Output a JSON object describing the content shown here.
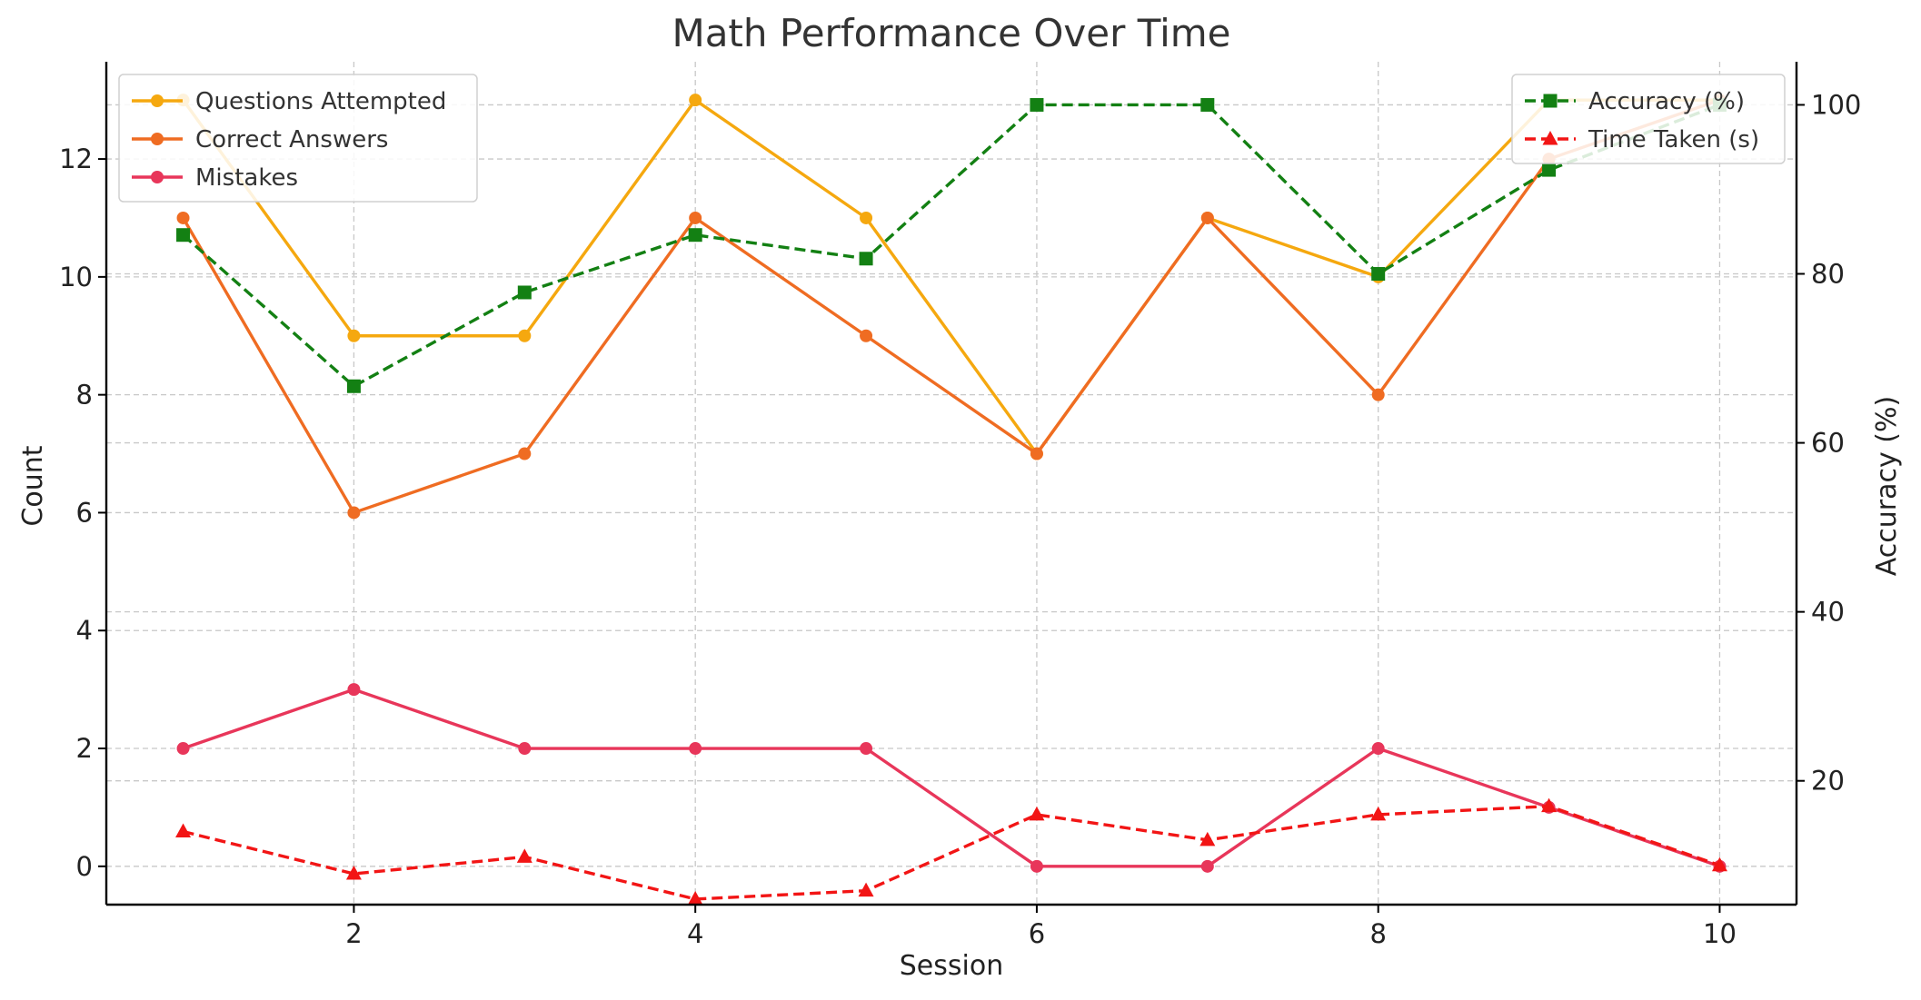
{
  "chart_data": {
    "type": "line",
    "title": "Math Performance Over Time",
    "xlabel": "Session",
    "ylabel_left": "Count",
    "ylabel_right": "Accuracy (%)",
    "x": [
      1,
      2,
      3,
      4,
      5,
      6,
      7,
      8,
      9,
      10
    ],
    "xlim": [
      0.55,
      10.45
    ],
    "ylim_left": [
      -0.65,
      13.65
    ],
    "ylim_right": [
      5.35,
      105.1
    ],
    "x_ticks": [
      2,
      4,
      6,
      8,
      10
    ],
    "y_ticks_left": [
      0,
      2,
      4,
      6,
      8,
      10,
      12
    ],
    "y_ticks_right": [
      20,
      40,
      60,
      80,
      100
    ],
    "grid": true,
    "legend_left_position": "upper-left",
    "legend_right_position": "upper-right",
    "series_left": [
      {
        "name": "Questions Attempted",
        "color": "#f5a80f",
        "marker": "circle",
        "dashed": false,
        "values": [
          13,
          9,
          9,
          13,
          11,
          7,
          11,
          10,
          13,
          13
        ]
      },
      {
        "name": "Correct Answers",
        "color": "#ef6c22",
        "marker": "circle",
        "dashed": false,
        "values": [
          11,
          6,
          7,
          11,
          9,
          7,
          11,
          8,
          12,
          13
        ]
      },
      {
        "name": "Mistakes",
        "color": "#e8365a",
        "marker": "circle",
        "dashed": false,
        "values": [
          2,
          3,
          2,
          2,
          2,
          0,
          0,
          2,
          1,
          0
        ]
      }
    ],
    "series_right": [
      {
        "name": "Accuracy (%)",
        "color": "#138013",
        "marker": "square",
        "dashed": true,
        "values": [
          84.6,
          66.7,
          77.8,
          84.6,
          81.8,
          100,
          100,
          80.0,
          92.3,
          100
        ]
      },
      {
        "name": "Time Taken (s)",
        "color": "#f21515",
        "marker": "triangle",
        "dashed": true,
        "values": [
          14,
          9,
          11,
          6,
          7,
          16,
          13,
          16,
          17,
          10
        ]
      }
    ]
  }
}
